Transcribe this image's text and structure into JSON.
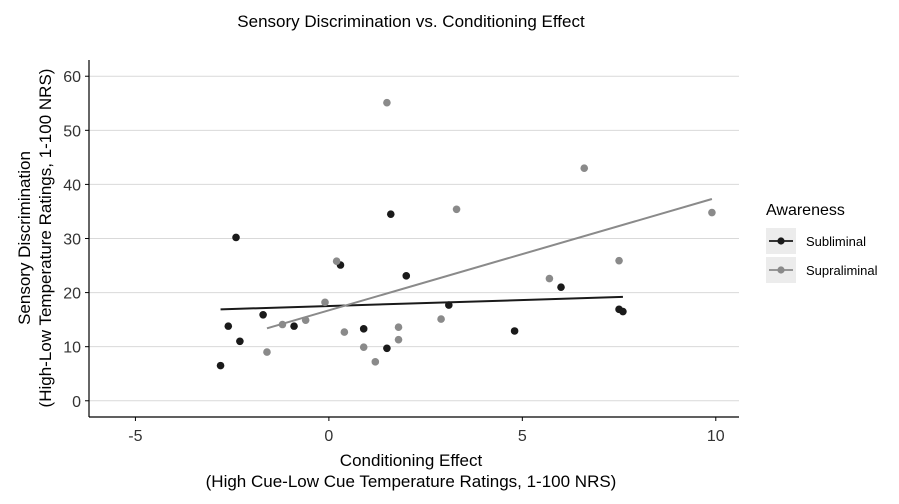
{
  "chart_data": {
    "type": "scatter",
    "title": "Sensory Discrimination vs. Conditioning Effect",
    "xlabel": [
      "Conditioning Effect",
      "(High Cue-Low Cue Temperature Ratings, 1-100 NRS)"
    ],
    "ylabel": [
      "Sensory Discrimination",
      "(High-Low Temperature Ratings, 1-100 NRS)"
    ],
    "xlim": [
      -6.2,
      10.6
    ],
    "ylim": [
      -3,
      63
    ],
    "xticks": [
      -5,
      0,
      5,
      10
    ],
    "yticks": [
      0,
      10,
      20,
      30,
      40,
      50,
      60
    ],
    "grid": true,
    "legend": {
      "title": "Awareness",
      "position": "right"
    },
    "series": [
      {
        "name": "Subliminal",
        "color": "#1a1a1a",
        "points": [
          [
            -2.8,
            6.5
          ],
          [
            -2.6,
            13.8
          ],
          [
            -2.3,
            11.0
          ],
          [
            -2.4,
            30.2
          ],
          [
            -1.7,
            15.9
          ],
          [
            -0.9,
            13.8
          ],
          [
            0.3,
            25.1
          ],
          [
            0.9,
            13.3
          ],
          [
            1.5,
            9.7
          ],
          [
            1.6,
            34.5
          ],
          [
            2.0,
            23.1
          ],
          [
            3.1,
            17.7
          ],
          [
            4.8,
            12.9
          ],
          [
            6.0,
            21.0
          ],
          [
            7.5,
            16.9
          ],
          [
            7.6,
            16.5
          ]
        ],
        "fit": {
          "x": [
            -2.8,
            7.6
          ],
          "y": [
            16.9,
            19.2
          ]
        }
      },
      {
        "name": "Supraliminal",
        "color": "#8a8a8a",
        "points": [
          [
            -1.6,
            9.0
          ],
          [
            -1.2,
            14.1
          ],
          [
            -0.6,
            14.9
          ],
          [
            -0.1,
            18.2
          ],
          [
            0.2,
            25.8
          ],
          [
            0.4,
            12.7
          ],
          [
            0.9,
            9.9
          ],
          [
            1.2,
            7.2
          ],
          [
            1.5,
            55.1
          ],
          [
            1.8,
            11.3
          ],
          [
            1.8,
            13.6
          ],
          [
            2.9,
            15.1
          ],
          [
            3.3,
            35.4
          ],
          [
            5.7,
            22.6
          ],
          [
            6.6,
            43.0
          ],
          [
            7.5,
            25.9
          ],
          [
            9.9,
            34.8
          ]
        ],
        "fit": {
          "x": [
            -1.6,
            9.9
          ],
          "y": [
            13.4,
            37.3
          ]
        }
      }
    ]
  }
}
